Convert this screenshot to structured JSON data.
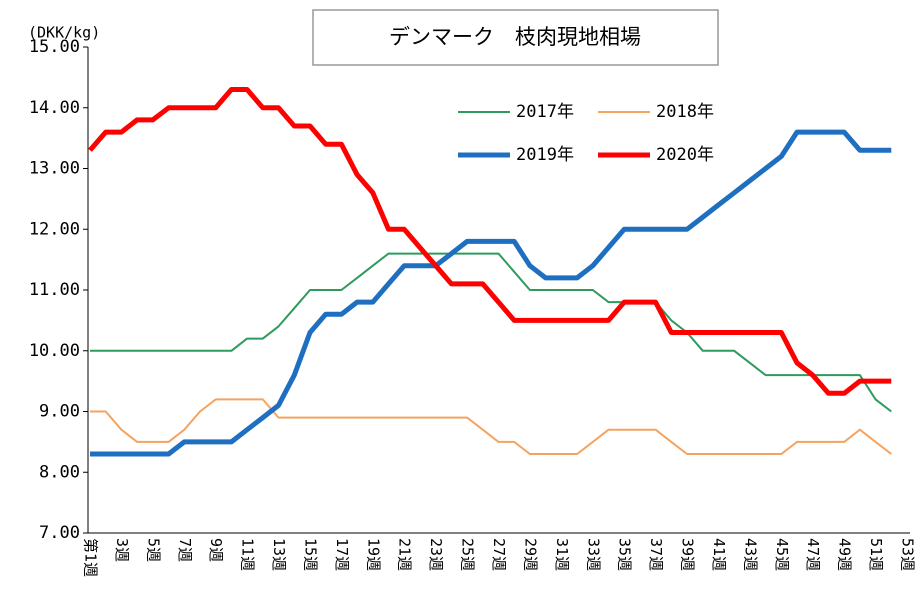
{
  "chart_data": {
    "type": "line",
    "title": "デンマーク　枝肉現地相場",
    "y_label": "(DKK/kg)",
    "categories": [
      "第1週",
      null,
      "3週",
      null,
      "5週",
      null,
      "7週",
      null,
      "9週",
      null,
      "11週",
      null,
      "13週",
      null,
      "15週",
      null,
      "17週",
      null,
      "19週",
      null,
      "21週",
      null,
      "23週",
      null,
      "25週",
      null,
      "27週",
      null,
      "29週",
      null,
      "31週",
      null,
      "33週",
      null,
      "35週",
      null,
      "37週",
      null,
      "39週",
      null,
      "41週",
      null,
      "43週",
      null,
      "45週",
      null,
      "47週",
      null,
      "49週",
      null,
      "51週",
      null,
      "53週"
    ],
    "ylim": [
      7,
      15
    ],
    "yticks": [
      {
        "value": 7,
        "label": "7.00"
      },
      {
        "value": 8,
        "label": "8.00"
      },
      {
        "value": 9,
        "label": "9.00"
      },
      {
        "value": 10,
        "label": "10.00"
      },
      {
        "value": 11,
        "label": "11.00"
      },
      {
        "value": 12,
        "label": "12.00"
      },
      {
        "value": 13,
        "label": "13.00"
      },
      {
        "value": 14,
        "label": "14.00"
      },
      {
        "value": 15,
        "label": "15.00"
      }
    ],
    "grid": false,
    "series": [
      {
        "name": "2017年",
        "color": "#2e9a5e",
        "line_width": 2,
        "values": [
          10,
          10,
          10,
          10,
          10,
          10,
          10,
          10,
          10,
          10,
          10.2,
          10.2,
          10.4,
          10.7,
          11,
          11,
          11,
          11.2,
          11.4,
          11.6,
          11.6,
          11.6,
          11.6,
          11.6,
          11.6,
          11.6,
          11.6,
          11.3,
          11,
          11,
          11,
          11,
          11,
          10.8,
          10.8,
          10.8,
          10.8,
          10.5,
          10.3,
          10,
          10,
          10,
          9.8,
          9.6,
          9.6,
          9.6,
          9.6,
          9.6,
          9.6,
          9.6,
          9.2,
          9,
          null
        ]
      },
      {
        "name": "2018年",
        "color": "#f4a460",
        "line_width": 2,
        "values": [
          9,
          9,
          8.7,
          8.5,
          8.5,
          8.5,
          8.7,
          9,
          9.2,
          9.2,
          9.2,
          9.2,
          8.9,
          8.9,
          8.9,
          8.9,
          8.9,
          8.9,
          8.9,
          8.9,
          8.9,
          8.9,
          8.9,
          8.9,
          8.9,
          8.7,
          8.5,
          8.5,
          8.3,
          8.3,
          8.3,
          8.3,
          8.5,
          8.7,
          8.7,
          8.7,
          8.7,
          8.5,
          8.3,
          8.3,
          8.3,
          8.3,
          8.3,
          8.3,
          8.3,
          8.5,
          8.5,
          8.5,
          8.5,
          8.7,
          8.5,
          8.3,
          null
        ]
      },
      {
        "name": "2019年",
        "color": "#1f6fc1",
        "line_width": 5,
        "values": [
          8.3,
          8.3,
          8.3,
          8.3,
          8.3,
          8.3,
          8.5,
          8.5,
          8.5,
          8.5,
          8.7,
          8.9,
          9.1,
          9.6,
          10.3,
          10.6,
          10.6,
          10.8,
          10.8,
          11.1,
          11.4,
          11.4,
          11.4,
          11.6,
          11.8,
          11.8,
          11.8,
          11.8,
          11.4,
          11.2,
          11.2,
          11.2,
          11.4,
          11.7,
          12,
          12,
          12,
          12,
          12,
          12.2,
          12.4,
          12.6,
          12.8,
          13,
          13.2,
          13.6,
          13.6,
          13.6,
          13.6,
          13.3,
          13.3,
          13.3,
          null
        ]
      },
      {
        "name": "2020年",
        "color": "#ff0000",
        "line_width": 5,
        "values": [
          13.3,
          13.6,
          13.6,
          13.8,
          13.8,
          14,
          14,
          14,
          14,
          14.3,
          14.3,
          14,
          14,
          13.7,
          13.7,
          13.4,
          13.4,
          12.9,
          12.6,
          12,
          12,
          11.7,
          11.4,
          11.1,
          11.1,
          11.1,
          10.8,
          10.5,
          10.5,
          10.5,
          10.5,
          10.5,
          10.5,
          10.5,
          10.8,
          10.8,
          10.8,
          10.3,
          10.3,
          10.3,
          10.3,
          10.3,
          10.3,
          10.3,
          10.3,
          9.8,
          9.6,
          9.3,
          9.3,
          9.5,
          9.5,
          9.5,
          null
        ]
      }
    ]
  }
}
